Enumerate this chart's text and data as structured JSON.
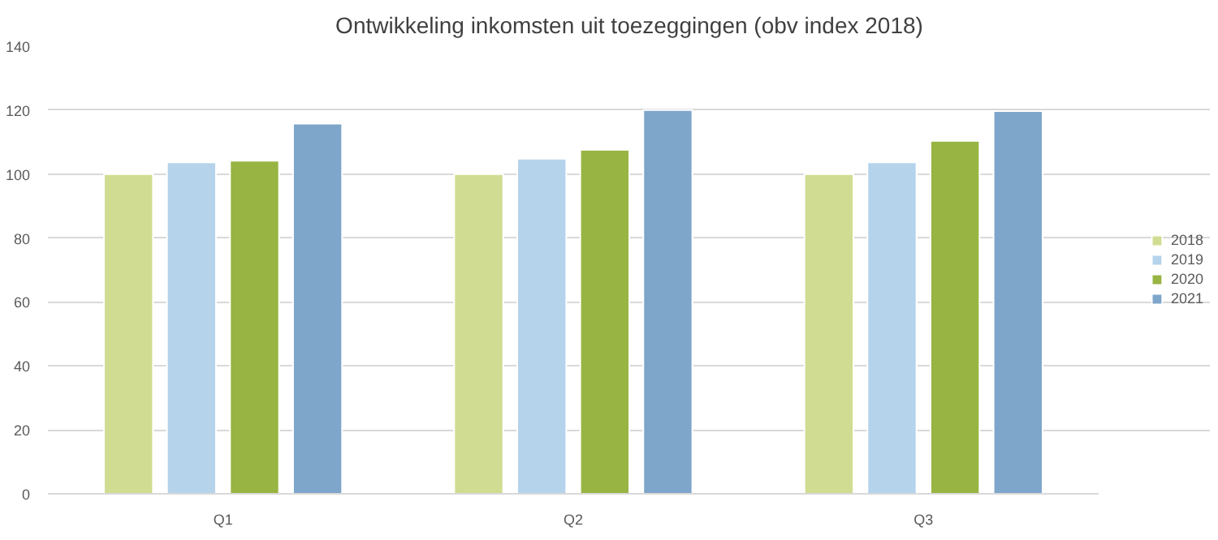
{
  "chart_data": {
    "type": "bar",
    "title": "Ontwikkeling inkomsten uit toezeggingen (obv index 2018)",
    "categories": [
      "Q1",
      "Q2",
      "Q3"
    ],
    "series": [
      {
        "name": "2018",
        "color": "#d0dc91",
        "values": [
          100,
          100,
          100
        ]
      },
      {
        "name": "2019",
        "color": "#b5d3eb",
        "values": [
          103.7,
          104.8,
          103.7
        ]
      },
      {
        "name": "2020",
        "color": "#98b442",
        "values": [
          104.2,
          107.6,
          110.4
        ]
      },
      {
        "name": "2021",
        "color": "#7ea5ca",
        "values": [
          115.8,
          120,
          119.7
        ]
      }
    ],
    "ylim": [
      0,
      140
    ],
    "yticks": [
      0,
      20,
      40,
      60,
      80,
      100,
      120,
      140
    ],
    "grid": "y",
    "legend": "right"
  }
}
